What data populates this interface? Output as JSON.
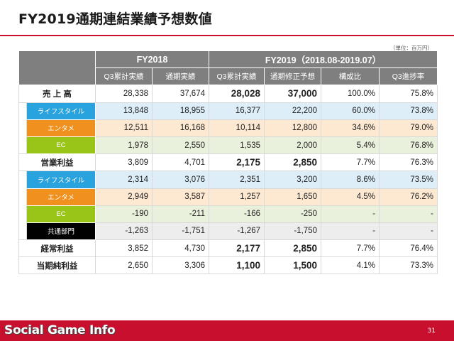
{
  "title": "FY2019通期連結業績予想数値",
  "unit": "（単位：百万円）",
  "header": {
    "fy2018": "FY2018",
    "fy2019": "FY2019（2018.08-2019.07）",
    "cols": [
      "Q3累計実績",
      "通期実績",
      "Q3累計実績",
      "通期修正予想",
      "構成比",
      "Q3進捗率"
    ]
  },
  "rows": [
    {
      "label": "売 上 高",
      "values": [
        "28,338",
        "37,674",
        "28,028",
        "37,000",
        "100.0%",
        "75.8%"
      ]
    },
    {
      "label": "ライフスタイル",
      "values": [
        "13,848",
        "18,955",
        "16,377",
        "22,200",
        "60.0%",
        "73.8%"
      ]
    },
    {
      "label": "エンタメ",
      "values": [
        "12,511",
        "16,168",
        "10,114",
        "12,800",
        "34.6%",
        "79.0%"
      ]
    },
    {
      "label": "EC",
      "values": [
        "1,978",
        "2,550",
        "1,535",
        "2,000",
        "5.4%",
        "76.8%"
      ]
    },
    {
      "label": "営業利益",
      "values": [
        "3,809",
        "4,701",
        "2,175",
        "2,850",
        "7.7%",
        "76.3%"
      ]
    },
    {
      "label": "ライフスタイル",
      "values": [
        "2,314",
        "3,076",
        "2,351",
        "3,200",
        "8.6%",
        "73.5%"
      ]
    },
    {
      "label": "エンタメ",
      "values": [
        "2,949",
        "3,587",
        "1,257",
        "1,650",
        "4.5%",
        "76.2%"
      ]
    },
    {
      "label": "EC",
      "values": [
        "-190",
        "-211",
        "-166",
        "-250",
        "-",
        "-"
      ]
    },
    {
      "label": "共通部門",
      "values": [
        "-1,263",
        "-1,751",
        "-1,267",
        "-1,750",
        "-",
        "-"
      ]
    },
    {
      "label": "経常利益",
      "values": [
        "3,852",
        "4,730",
        "2,177",
        "2,850",
        "7.7%",
        "76.4%"
      ]
    },
    {
      "label": "当期純利益",
      "values": [
        "2,650",
        "3,306",
        "1,100",
        "1,500",
        "4.1%",
        "73.3%"
      ]
    }
  ],
  "footer": {
    "logo": "Social Game Info",
    "page": "31"
  },
  "colors": {
    "accent": "#c8102e",
    "lifestyle": "#29a3dd",
    "entertainment": "#f0901e",
    "ec": "#99c418",
    "common": "#000000",
    "header": "#7f7f7f"
  }
}
